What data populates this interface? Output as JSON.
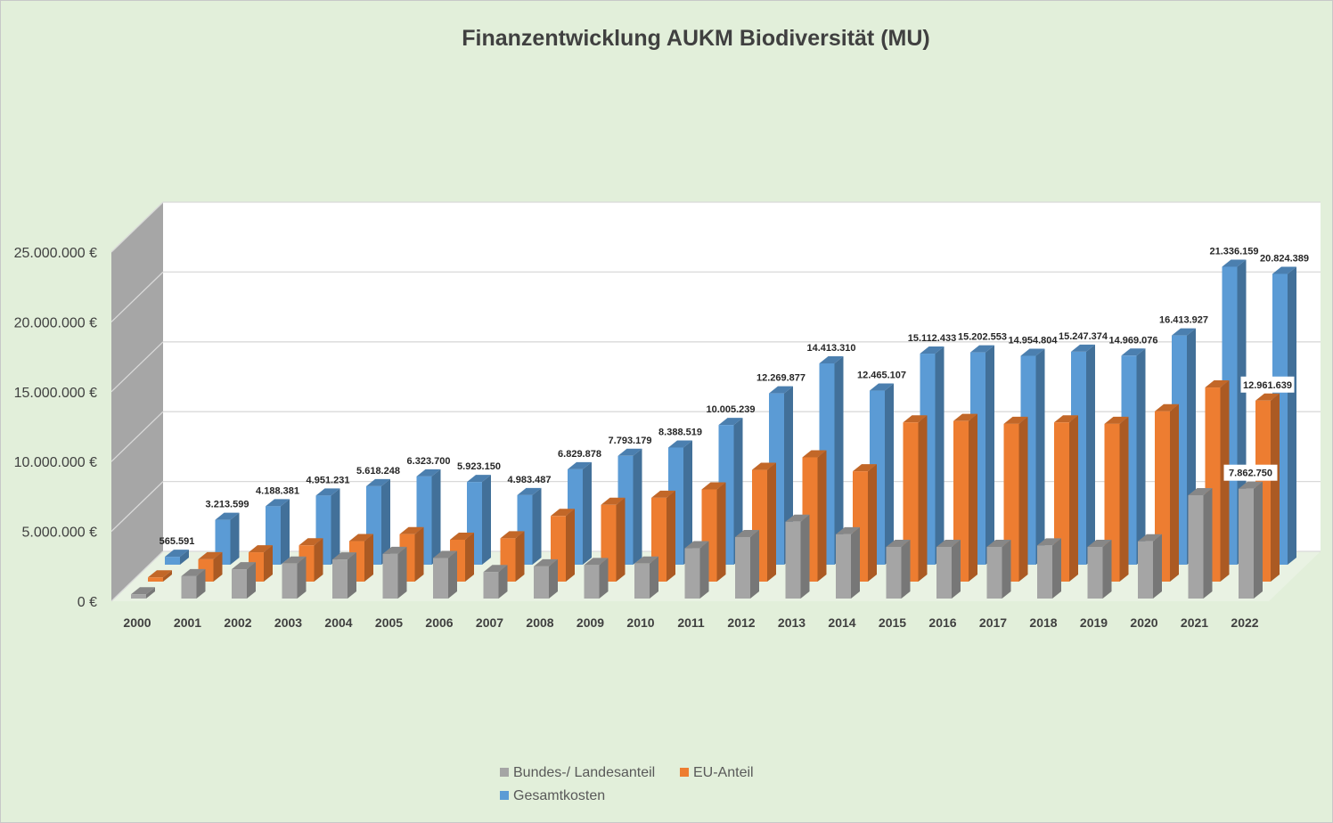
{
  "chart_data": {
    "type": "bar",
    "style": "3d-clustered-depth",
    "title": "Finanzentwicklung AUKM Biodiversität (MU)",
    "categories": [
      "2000",
      "2001",
      "2002",
      "2003",
      "2004",
      "2005",
      "2006",
      "2007",
      "2008",
      "2009",
      "2010",
      "2011",
      "2012",
      "2013",
      "2014",
      "2015",
      "2016",
      "2017",
      "2018",
      "2019",
      "2020",
      "2021",
      "2022"
    ],
    "y_ticks": [
      "0 €",
      "5.000.000 €",
      "10.000.000 €",
      "15.000.000 €",
      "20.000.000 €",
      "25.000.000 €"
    ],
    "ylim": [
      0,
      25000000
    ],
    "legend_position": "bottom",
    "series": [
      {
        "name": "Bundes-/ Landesanteil",
        "color": "#a5a5a5",
        "values": [
          300000,
          1600000,
          2100000,
          2500000,
          2800000,
          3200000,
          2900000,
          1900000,
          2300000,
          2400000,
          2500000,
          3600000,
          4400000,
          5500000,
          4600000,
          3700000,
          3700000,
          3700000,
          3800000,
          3700000,
          4100000,
          7400000,
          7862750
        ],
        "labels": [
          "",
          "",
          "",
          "",
          "",
          "",
          "",
          "",
          "",
          "",
          "",
          "",
          "",
          "",
          "",
          "",
          "",
          "",
          "",
          "",
          "",
          "",
          "7.862.750"
        ]
      },
      {
        "name": "EU-Anteil",
        "color": "#ed7d31",
        "values": [
          300000,
          1600000,
          2100000,
          2600000,
          2900000,
          3400000,
          3000000,
          3100000,
          4700000,
          5500000,
          6000000,
          6600000,
          8000000,
          8900000,
          7900000,
          11400000,
          11500000,
          11300000,
          11400000,
          11300000,
          12200000,
          13900000,
          12961639
        ],
        "labels": [
          "",
          "",
          "",
          "",
          "",
          "",
          "",
          "",
          "",
          "",
          "",
          "",
          "",
          "",
          "",
          "",
          "",
          "",
          "",
          "",
          "",
          "",
          "12.961.639"
        ]
      },
      {
        "name": "Gesamtkosten",
        "color": "#5b9bd5",
        "values": [
          565591,
          3213599,
          4188381,
          4951231,
          5618248,
          6323700,
          5923150,
          4983487,
          6829878,
          7793179,
          8388519,
          10005239,
          12269877,
          14413310,
          12465107,
          15112433,
          15202553,
          14954804,
          15247374,
          14969076,
          16413927,
          21336159,
          20824389
        ],
        "labels": [
          "565.591",
          "3.213.599",
          "4.188.381",
          "4.951.231",
          "5.618.248",
          "6.323.700",
          "5.923.150",
          "4.983.487",
          "6.829.878",
          "7.793.179",
          "8.388.519",
          "10.005.239",
          "12.269.877",
          "14.413.310",
          "12.465.107",
          "15.112.433",
          "15.202.553",
          "14.954.804",
          "15.247.374",
          "14.969.076",
          "16.413.927",
          "21.336.159",
          "20.824.389"
        ]
      }
    ]
  }
}
